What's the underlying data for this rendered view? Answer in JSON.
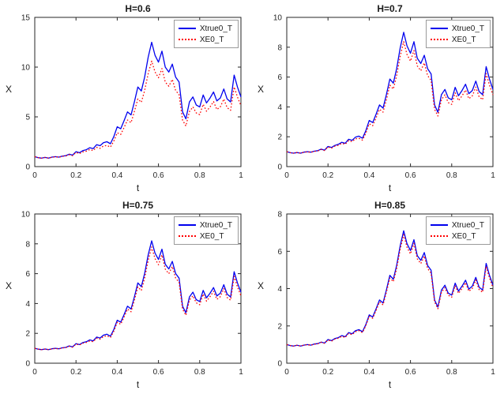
{
  "figure": {
    "colors": {
      "axis": "#262626",
      "series_blue": "#0000ee",
      "series_red": "#ff0000",
      "background": "#ffffff"
    }
  },
  "chart_data": [
    {
      "type": "line",
      "title": "H=0.6",
      "xlabel": "t",
      "ylabel": "X",
      "xlim": [
        0,
        1
      ],
      "ylim": [
        0,
        15
      ],
      "xticks": [
        0,
        0.2,
        0.4,
        0.6,
        0.8,
        1
      ],
      "yticks": [
        0,
        5,
        10,
        15
      ],
      "legend_position": "top-right",
      "grid": false,
      "x": [
        0,
        0.017,
        0.033,
        0.05,
        0.067,
        0.083,
        0.1,
        0.117,
        0.133,
        0.15,
        0.167,
        0.183,
        0.2,
        0.217,
        0.233,
        0.25,
        0.267,
        0.283,
        0.3,
        0.317,
        0.333,
        0.35,
        0.367,
        0.383,
        0.4,
        0.417,
        0.433,
        0.45,
        0.467,
        0.483,
        0.5,
        0.517,
        0.533,
        0.55,
        0.567,
        0.583,
        0.6,
        0.617,
        0.633,
        0.65,
        0.667,
        0.683,
        0.7,
        0.717,
        0.733,
        0.75,
        0.767,
        0.783,
        0.8,
        0.817,
        0.833,
        0.85,
        0.867,
        0.883,
        0.9,
        0.917,
        0.933,
        0.95,
        0.967,
        0.983,
        1
      ],
      "series": [
        {
          "name": "Xtrue0_T",
          "color": "#0000ee",
          "style": "solid",
          "values": [
            1,
            0.9,
            0.85,
            0.92,
            0.85,
            0.95,
            1,
            0.95,
            1.05,
            1.1,
            1.25,
            1.15,
            1.5,
            1.4,
            1.6,
            1.7,
            1.9,
            1.8,
            2.2,
            2.1,
            2.4,
            2.5,
            2.3,
            3,
            4,
            3.8,
            4.6,
            5.5,
            5.2,
            6.5,
            8,
            7.6,
            9,
            11,
            12.5,
            11.2,
            10.5,
            11.6,
            10,
            9.5,
            10.3,
            9,
            8.5,
            5.5,
            4.8,
            6.5,
            7,
            6.2,
            6,
            7.2,
            6.4,
            6.9,
            7.5,
            6.6,
            6.9,
            7.8,
            6.8,
            6.5,
            9.2,
            8,
            7
          ]
        },
        {
          "name": "XE0_T",
          "color": "#ff0000",
          "style": "dotted",
          "values": [
            1,
            0.9,
            0.85,
            0.92,
            0.85,
            0.94,
            0.99,
            0.94,
            1.03,
            1.07,
            1.2,
            1.1,
            1.42,
            1.31,
            1.48,
            1.55,
            1.72,
            1.61,
            1.94,
            1.83,
            2.07,
            2.13,
            1.96,
            2.55,
            3.4,
            3.23,
            3.91,
            4.68,
            4.42,
            5.53,
            6.8,
            6.46,
            7.65,
            9.35,
            10.6,
            9.52,
            8.93,
            9.86,
            8.5,
            8.08,
            8.76,
            7.65,
            7.23,
            4.68,
            4.08,
            5.53,
            6,
            5.4,
            5.22,
            6.26,
            5.57,
            6,
            6.53,
            5.74,
            6,
            6.79,
            5.92,
            5.66,
            8,
            7,
            6.1
          ]
        }
      ]
    },
    {
      "type": "line",
      "title": "H=0.7",
      "xlabel": "t",
      "ylabel": "X",
      "xlim": [
        0,
        1
      ],
      "ylim": [
        0,
        10
      ],
      "xticks": [
        0,
        0.2,
        0.4,
        0.6,
        0.8,
        1
      ],
      "yticks": [
        0,
        2,
        4,
        6,
        8,
        10
      ],
      "legend_position": "top-right",
      "grid": false,
      "x": [
        0,
        0.017,
        0.033,
        0.05,
        0.067,
        0.083,
        0.1,
        0.117,
        0.133,
        0.15,
        0.167,
        0.183,
        0.2,
        0.217,
        0.233,
        0.25,
        0.267,
        0.283,
        0.3,
        0.317,
        0.333,
        0.35,
        0.367,
        0.383,
        0.4,
        0.417,
        0.433,
        0.45,
        0.467,
        0.483,
        0.5,
        0.517,
        0.533,
        0.55,
        0.567,
        0.583,
        0.6,
        0.617,
        0.633,
        0.65,
        0.667,
        0.683,
        0.7,
        0.717,
        0.733,
        0.75,
        0.767,
        0.783,
        0.8,
        0.817,
        0.833,
        0.85,
        0.867,
        0.883,
        0.9,
        0.917,
        0.933,
        0.95,
        0.967,
        0.983,
        1
      ],
      "series": [
        {
          "name": "Xtrue0_T",
          "color": "#0000ee",
          "style": "solid",
          "values": [
            1,
            0.93,
            0.9,
            0.94,
            0.9,
            0.97,
            1,
            0.97,
            1.03,
            1.07,
            1.17,
            1.1,
            1.35,
            1.28,
            1.42,
            1.49,
            1.63,
            1.56,
            1.83,
            1.76,
            1.97,
            2.04,
            1.9,
            2.39,
            3.09,
            2.95,
            3.5,
            4.13,
            3.92,
            4.82,
            5.87,
            5.59,
            6.56,
            7.95,
            9,
            8.09,
            7.6,
            8.37,
            7.26,
            6.91,
            7.46,
            6.56,
            6.21,
            4.13,
            3.64,
            4.82,
            5.17,
            4.61,
            4.48,
            5.31,
            4.75,
            5.1,
            5.52,
            4.89,
            5.1,
            5.73,
            5.03,
            4.82,
            6.7,
            5.87,
            5.17
          ]
        },
        {
          "name": "XE0_T",
          "color": "#ff0000",
          "style": "dotted",
          "values": [
            1,
            0.93,
            0.9,
            0.94,
            0.9,
            0.96,
            0.99,
            0.96,
            1.02,
            1.05,
            1.15,
            1.08,
            1.31,
            1.24,
            1.37,
            1.43,
            1.56,
            1.49,
            1.74,
            1.67,
            1.86,
            1.9,
            1.77,
            2.22,
            2.87,
            2.74,
            3.26,
            3.84,
            3.65,
            4.48,
            5.46,
            5.2,
            6.1,
            7.39,
            8.37,
            7.52,
            7.07,
            7.78,
            6.75,
            6.43,
            6.94,
            6.1,
            5.78,
            3.84,
            3.39,
            4.48,
            4.81,
            4.29,
            4.17,
            4.94,
            4.42,
            4.74,
            5.13,
            4.55,
            4.74,
            5.33,
            4.68,
            4.48,
            6.23,
            5.46,
            4.81
          ]
        }
      ]
    },
    {
      "type": "line",
      "title": "H=0.75",
      "xlabel": "t",
      "ylabel": "X",
      "xlim": [
        0,
        1
      ],
      "ylim": [
        0,
        10
      ],
      "xticks": [
        0,
        0.2,
        0.4,
        0.6,
        0.8,
        1
      ],
      "yticks": [
        0,
        2,
        4,
        6,
        8,
        10
      ],
      "legend_position": "top-right",
      "grid": false,
      "x": [
        0,
        0.017,
        0.033,
        0.05,
        0.067,
        0.083,
        0.1,
        0.117,
        0.133,
        0.15,
        0.167,
        0.183,
        0.2,
        0.217,
        0.233,
        0.25,
        0.267,
        0.283,
        0.3,
        0.317,
        0.333,
        0.35,
        0.367,
        0.383,
        0.4,
        0.417,
        0.433,
        0.45,
        0.467,
        0.483,
        0.5,
        0.517,
        0.533,
        0.55,
        0.567,
        0.583,
        0.6,
        0.617,
        0.633,
        0.65,
        0.667,
        0.683,
        0.7,
        0.717,
        0.733,
        0.75,
        0.767,
        0.783,
        0.8,
        0.817,
        0.833,
        0.85,
        0.867,
        0.883,
        0.9,
        0.917,
        0.933,
        0.95,
        0.967,
        0.983,
        1
      ],
      "series": [
        {
          "name": "Xtrue0_T",
          "color": "#0000ee",
          "style": "solid",
          "values": [
            1,
            0.94,
            0.91,
            0.95,
            0.91,
            0.97,
            1,
            0.97,
            1.03,
            1.06,
            1.16,
            1.09,
            1.31,
            1.25,
            1.38,
            1.44,
            1.56,
            1.5,
            1.75,
            1.69,
            1.88,
            1.94,
            1.81,
            2.25,
            2.88,
            2.75,
            3.25,
            3.82,
            3.63,
            4.44,
            5.38,
            5.13,
            6.01,
            7.26,
            8.2,
            7.38,
            6.95,
            7.64,
            6.63,
            6.32,
            6.82,
            6.01,
            5.7,
            3.82,
            3.38,
            4.44,
            4.76,
            4.26,
            4.13,
            4.88,
            4.38,
            4.69,
            5.07,
            4.51,
            4.69,
            5.26,
            4.63,
            4.44,
            6.13,
            5.38,
            4.76
          ]
        },
        {
          "name": "XE0_T",
          "color": "#ff0000",
          "style": "dotted",
          "values": [
            1,
            0.94,
            0.91,
            0.95,
            0.91,
            0.96,
            0.99,
            0.96,
            1.02,
            1.05,
            1.14,
            1.07,
            1.28,
            1.22,
            1.34,
            1.39,
            1.5,
            1.44,
            1.68,
            1.61,
            1.79,
            1.84,
            1.72,
            2.14,
            2.74,
            2.61,
            3.09,
            3.63,
            3.45,
            4.22,
            5.11,
            4.87,
            5.71,
            6.9,
            7.79,
            7.01,
            6.6,
            7.26,
            6.3,
            6,
            6.48,
            5.71,
            5.42,
            3.63,
            3.21,
            4.22,
            4.52,
            4.05,
            3.92,
            4.64,
            4.16,
            4.46,
            4.82,
            4.28,
            4.46,
            5,
            4.4,
            4.22,
            5.82,
            5.11,
            4.52
          ]
        }
      ]
    },
    {
      "type": "line",
      "title": "H=0.85",
      "xlabel": "t",
      "ylabel": "X",
      "xlim": [
        0,
        1
      ],
      "ylim": [
        0,
        8
      ],
      "xticks": [
        0,
        0.2,
        0.4,
        0.6,
        0.8,
        1
      ],
      "yticks": [
        0,
        2,
        4,
        6,
        8
      ],
      "legend_position": "top-right",
      "grid": false,
      "x": [
        0,
        0.017,
        0.033,
        0.05,
        0.067,
        0.083,
        0.1,
        0.117,
        0.133,
        0.15,
        0.167,
        0.183,
        0.2,
        0.217,
        0.233,
        0.25,
        0.267,
        0.283,
        0.3,
        0.317,
        0.333,
        0.35,
        0.367,
        0.383,
        0.4,
        0.417,
        0.433,
        0.45,
        0.467,
        0.483,
        0.5,
        0.517,
        0.533,
        0.55,
        0.567,
        0.583,
        0.6,
        0.617,
        0.633,
        0.65,
        0.667,
        0.683,
        0.7,
        0.717,
        0.733,
        0.75,
        0.767,
        0.783,
        0.8,
        0.817,
        0.833,
        0.85,
        0.867,
        0.883,
        0.9,
        0.917,
        0.933,
        0.95,
        0.967,
        0.983,
        1
      ],
      "series": [
        {
          "name": "Xtrue0_T",
          "color": "#0000ee",
          "style": "solid",
          "values": [
            1,
            0.95,
            0.92,
            0.96,
            0.92,
            0.97,
            1,
            0.97,
            1.03,
            1.05,
            1.13,
            1.08,
            1.27,
            1.21,
            1.32,
            1.37,
            1.48,
            1.42,
            1.64,
            1.58,
            1.74,
            1.8,
            1.69,
            2.06,
            2.59,
            2.48,
            2.91,
            3.39,
            3.23,
            3.92,
            4.71,
            4.5,
            5.24,
            6.3,
            7.1,
            6.41,
            6.04,
            6.62,
            5.77,
            5.51,
            5.93,
            5.24,
            4.98,
            3.39,
            3.01,
            3.92,
            4.18,
            3.76,
            3.65,
            4.29,
            3.86,
            4.13,
            4.45,
            3.97,
            4.13,
            4.6,
            4.07,
            3.92,
            5.35,
            4.71,
            4.18
          ]
        },
        {
          "name": "XE0_T",
          "color": "#ff0000",
          "style": "dotted",
          "values": [
            1,
            0.95,
            0.92,
            0.96,
            0.92,
            0.97,
            0.99,
            0.96,
            1.02,
            1.04,
            1.12,
            1.07,
            1.24,
            1.18,
            1.29,
            1.34,
            1.44,
            1.38,
            1.6,
            1.53,
            1.69,
            1.75,
            1.64,
            2,
            2.51,
            2.41,
            2.82,
            3.29,
            3.13,
            3.8,
            4.57,
            4.37,
            5.08,
            6.11,
            6.89,
            6.22,
            5.86,
            6.42,
            5.6,
            5.34,
            5.75,
            5.08,
            4.83,
            3.29,
            2.92,
            3.8,
            4.05,
            3.65,
            3.54,
            4.16,
            3.74,
            4.01,
            4.32,
            3.85,
            4.01,
            4.46,
            3.95,
            3.8,
            5.19,
            4.57,
            4.05
          ]
        }
      ]
    }
  ]
}
